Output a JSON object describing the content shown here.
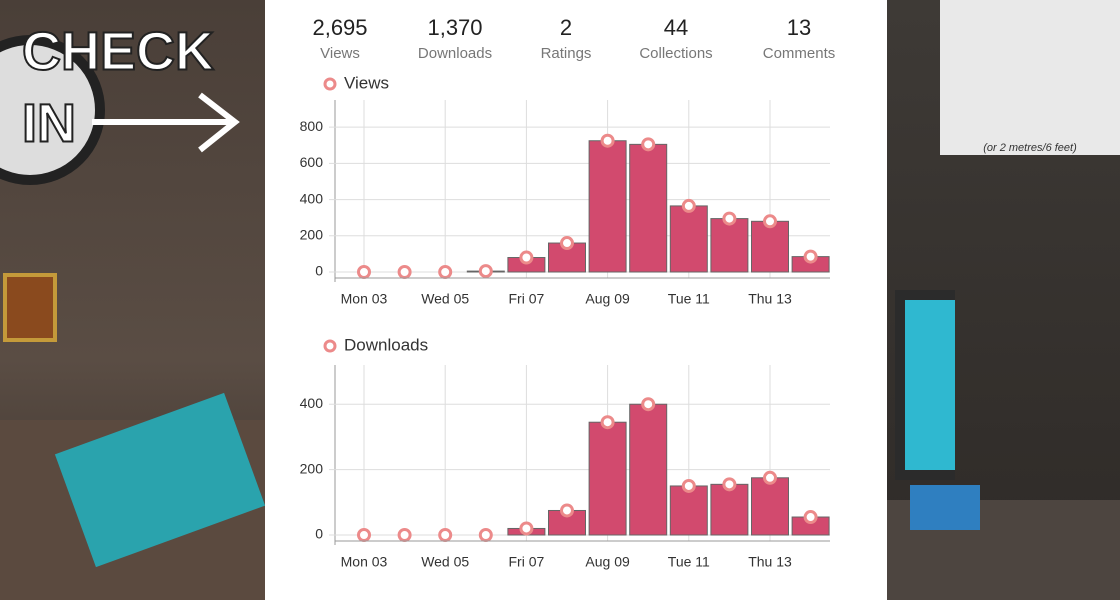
{
  "logo": [
    "CHECK",
    "IN"
  ],
  "poster_caption": "(or 2 metres/6 feet)",
  "stats": [
    {
      "value": "2,695",
      "label": "Views"
    },
    {
      "value": "1,370",
      "label": "Downloads"
    },
    {
      "value": "2",
      "label": "Ratings"
    },
    {
      "value": "44",
      "label": "Collections"
    },
    {
      "value": "13",
      "label": "Comments"
    }
  ],
  "chart_data": [
    {
      "type": "bar",
      "title": "Views",
      "categories": [
        "Mon 03",
        null,
        "Wed 05",
        null,
        "Fri 07",
        null,
        "Aug 09",
        null,
        "Tue 11",
        null,
        "Thu 13",
        null
      ],
      "values": [
        0,
        0,
        0,
        5,
        80,
        160,
        725,
        705,
        365,
        295,
        280,
        85
      ],
      "color": "#d24a6e",
      "marker_color": "#ec8a8a",
      "ylim": [
        0,
        950
      ],
      "yticks": [
        0,
        200,
        400,
        600,
        800
      ],
      "grid": true
    },
    {
      "type": "bar",
      "title": "Downloads",
      "categories": [
        "Mon 03",
        null,
        "Wed 05",
        null,
        "Fri 07",
        null,
        "Aug 09",
        null,
        "Tue 11",
        null,
        "Thu 13",
        null
      ],
      "values": [
        0,
        0,
        0,
        0,
        20,
        75,
        345,
        400,
        150,
        155,
        175,
        55
      ],
      "color": "#d24a6e",
      "marker_color": "#ec8a8a",
      "ylim": [
        0,
        520
      ],
      "yticks": [
        0,
        200,
        400
      ],
      "grid": true
    }
  ]
}
